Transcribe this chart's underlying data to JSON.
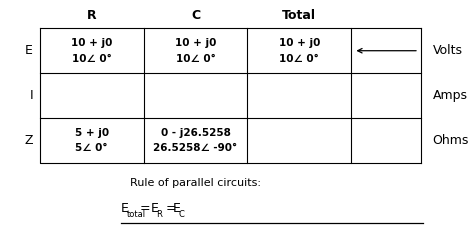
{
  "col_headers": [
    "R",
    "C",
    "Total"
  ],
  "row_headers": [
    "E",
    "I",
    "Z"
  ],
  "row_labels_right": [
    "Volts",
    "Amps",
    "Ohms"
  ],
  "cell_data": {
    "E": {
      "R": [
        "10 + j0",
        "10∠ 0°"
      ],
      "C": [
        "10 + j0",
        "10∠ 0°"
      ],
      "Total": [
        "10 + j0",
        "10∠ 0°"
      ]
    },
    "I": {
      "R": [],
      "C": [],
      "Total": []
    },
    "Z": {
      "R": [
        "5 + j0",
        "5∠ 0°"
      ],
      "C": [
        "0 - j26.5258",
        "26.5258∠ -90°"
      ],
      "Total": []
    }
  },
  "rule_text": "Rule of parallel circuits:",
  "bg_color": "#ffffff",
  "table_line_color": "#000000",
  "text_color": "#000000",
  "font_size_header": 9,
  "font_size_cell": 7.5,
  "font_size_rule": 8,
  "font_size_row_header": 9,
  "font_size_formula_main": 9,
  "font_size_formula_sub": 6
}
